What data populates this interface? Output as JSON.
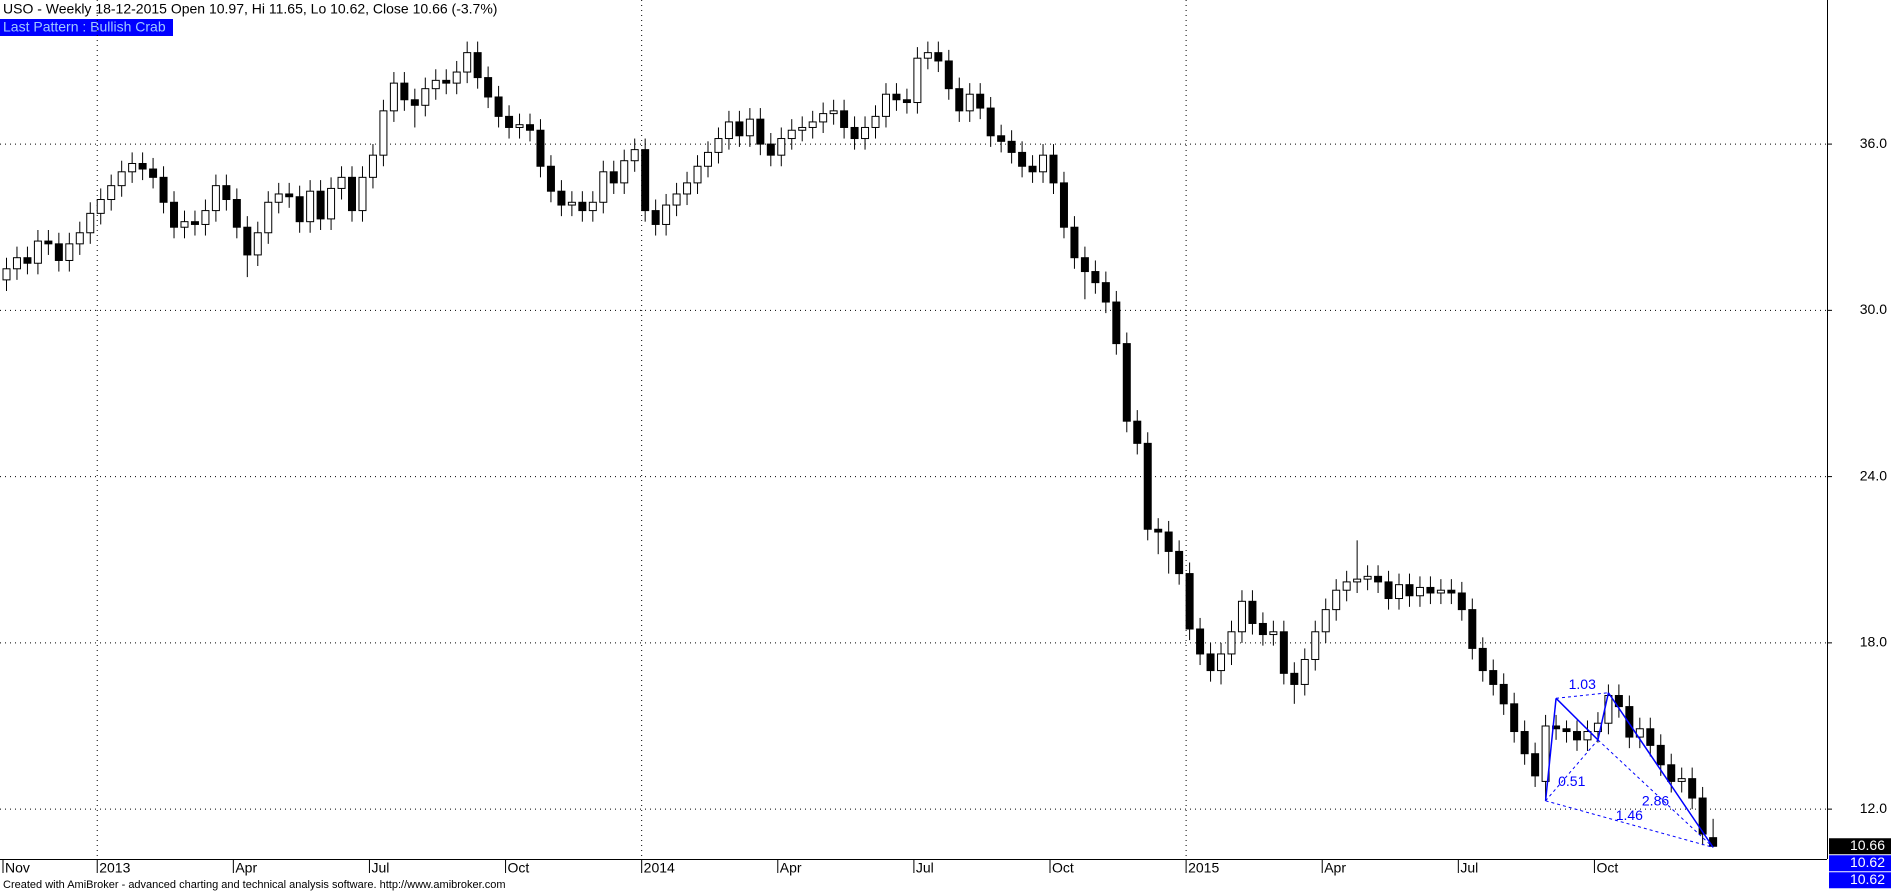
{
  "chart_data": {
    "type": "candlestick",
    "title": "USO - Weekly 18-12-2015 Open 10.97, Hi 11.65, Lo 10.62, Close 10.66 (-3.7%)",
    "pattern_label": "Last Pattern : Bullish Crab",
    "footer": "Created with AmiBroker - advanced charting and technical analysis software. http://www.amibroker.com",
    "categories": [
      "Nov",
      null,
      null,
      null,
      null,
      null,
      null,
      null,
      null,
      "2013",
      null,
      null,
      null,
      null,
      null,
      null,
      null,
      null,
      null,
      null,
      null,
      null,
      "Apr",
      null,
      null,
      null,
      null,
      null,
      null,
      null,
      null,
      null,
      null,
      null,
      null,
      "Jul",
      null,
      null,
      null,
      null,
      null,
      null,
      null,
      null,
      null,
      null,
      null,
      null,
      "Oct",
      null,
      null,
      null,
      null,
      null,
      null,
      null,
      null,
      null,
      null,
      null,
      null,
      "2014",
      null,
      null,
      null,
      null,
      null,
      null,
      null,
      null,
      null,
      null,
      null,
      null,
      "Apr",
      null,
      null,
      null,
      null,
      null,
      null,
      null,
      null,
      null,
      null,
      null,
      null,
      "Jul",
      null,
      null,
      null,
      null,
      null,
      null,
      null,
      null,
      null,
      null,
      null,
      null,
      "Oct",
      null,
      null,
      null,
      null,
      null,
      null,
      null,
      null,
      null,
      null,
      null,
      null,
      "2015",
      null,
      null,
      null,
      null,
      null,
      null,
      null,
      null,
      null,
      null,
      null,
      null,
      "Apr",
      null,
      null,
      null,
      null,
      null,
      null,
      null,
      null,
      null,
      null,
      null,
      null,
      "Jul",
      null,
      null,
      null,
      null,
      null,
      null,
      null,
      null,
      null,
      null,
      null,
      null,
      "Oct",
      null,
      null,
      null,
      null,
      null,
      null,
      null,
      null,
      null,
      null,
      null
    ],
    "open": [
      31.1,
      31.5,
      31.9,
      31.7,
      32.5,
      32.4,
      31.8,
      32.4,
      32.8,
      33.5,
      34.0,
      34.5,
      35.0,
      35.3,
      35.1,
      34.8,
      33.9,
      33.0,
      33.2,
      33.1,
      33.6,
      34.5,
      34.0,
      33.0,
      32.0,
      32.8,
      33.9,
      34.2,
      34.1,
      33.2,
      34.3,
      33.3,
      34.4,
      34.8,
      33.6,
      34.8,
      35.6,
      37.2,
      38.2,
      37.6,
      37.4,
      38.0,
      38.3,
      38.2,
      38.6,
      39.3,
      38.4,
      37.7,
      37.0,
      36.6,
      36.7,
      36.5,
      35.2,
      34.3,
      33.8,
      33.9,
      33.6,
      33.9,
      35.0,
      34.6,
      35.4,
      35.8,
      33.6,
      33.1,
      33.8,
      34.2,
      34.6,
      35.2,
      35.7,
      36.2,
      36.8,
      36.3,
      36.9,
      36.0,
      35.6,
      36.2,
      36.5,
      36.6,
      36.8,
      37.1,
      37.2,
      36.6,
      36.2,
      36.6,
      37.0,
      37.8,
      37.6,
      37.5,
      39.1,
      39.3,
      39.0,
      38.0,
      37.2,
      37.8,
      37.3,
      36.3,
      36.1,
      35.7,
      35.2,
      35.0,
      35.6,
      34.6,
      33.0,
      31.9,
      31.4,
      31.0,
      30.3,
      28.8,
      26.0,
      25.2,
      22.1,
      22.0,
      21.3,
      20.5,
      18.5,
      17.6,
      17.0,
      17.6,
      18.4,
      19.5,
      18.7,
      18.3,
      18.4,
      16.9,
      16.5,
      17.4,
      18.4,
      19.2,
      19.9,
      20.2,
      20.3,
      20.4,
      20.2,
      19.6,
      20.1,
      19.7,
      20.0,
      19.8,
      19.9,
      19.8,
      19.2,
      17.8,
      17.0,
      16.5,
      15.8,
      14.8,
      14.0,
      13.0,
      15.0,
      14.9,
      14.8,
      14.5,
      14.8,
      15.1,
      16.1,
      15.7,
      14.6,
      14.9,
      14.3,
      13.6,
      13.0,
      13.1,
      12.4,
      10.97
    ],
    "high": [
      31.9,
      32.3,
      32.3,
      32.9,
      32.9,
      32.8,
      32.8,
      33.2,
      33.9,
      34.4,
      34.9,
      35.4,
      35.7,
      35.7,
      35.5,
      35.2,
      34.3,
      33.6,
      33.6,
      34.0,
      34.9,
      34.9,
      34.4,
      33.4,
      33.2,
      34.3,
      34.6,
      34.6,
      34.5,
      34.7,
      34.7,
      34.8,
      35.2,
      35.2,
      35.2,
      36.0,
      37.6,
      38.6,
      38.6,
      38.0,
      38.4,
      38.7,
      38.7,
      39.0,
      39.7,
      39.7,
      38.8,
      38.1,
      37.4,
      37.1,
      37.1,
      36.9,
      35.6,
      34.7,
      34.3,
      34.3,
      34.3,
      35.4,
      35.4,
      35.8,
      36.2,
      36.2,
      34.0,
      34.2,
      34.6,
      35.0,
      35.6,
      36.1,
      36.6,
      37.2,
      37.2,
      37.3,
      37.3,
      36.4,
      36.6,
      36.9,
      37.0,
      37.2,
      37.5,
      37.6,
      37.6,
      37.0,
      37.0,
      37.4,
      38.2,
      38.2,
      38.0,
      39.5,
      39.7,
      39.7,
      39.4,
      38.4,
      38.2,
      38.2,
      37.7,
      36.7,
      36.5,
      36.1,
      35.6,
      36.0,
      36.0,
      35.0,
      33.4,
      32.3,
      31.8,
      31.4,
      30.7,
      29.2,
      26.4,
      25.6,
      22.5,
      22.4,
      21.7,
      20.9,
      18.9,
      18.0,
      18.0,
      18.8,
      19.9,
      19.9,
      19.1,
      18.8,
      18.8,
      17.3,
      17.8,
      18.8,
      19.6,
      20.3,
      20.6,
      21.7,
      20.8,
      20.8,
      20.6,
      20.5,
      20.5,
      20.4,
      20.4,
      20.3,
      20.3,
      20.2,
      19.6,
      18.2,
      17.4,
      16.9,
      16.2,
      15.2,
      14.4,
      15.4,
      15.4,
      15.2,
      15.2,
      15.2,
      15.5,
      16.5,
      16.5,
      16.1,
      15.3,
      15.3,
      14.7,
      14.0,
      13.5,
      13.5,
      12.8,
      11.65
    ],
    "low": [
      30.7,
      31.1,
      31.3,
      31.3,
      32.0,
      31.4,
      31.4,
      32.0,
      32.4,
      33.1,
      33.6,
      34.1,
      34.6,
      34.7,
      34.4,
      33.5,
      32.6,
      32.6,
      32.7,
      32.7,
      33.2,
      33.6,
      32.6,
      31.2,
      31.6,
      32.4,
      33.5,
      33.7,
      32.8,
      32.8,
      32.9,
      32.9,
      34.0,
      33.2,
      33.2,
      34.4,
      35.2,
      36.8,
      37.2,
      36.6,
      37.0,
      37.6,
      37.8,
      37.8,
      38.2,
      38.0,
      37.3,
      36.6,
      36.2,
      36.2,
      36.1,
      34.8,
      33.9,
      33.4,
      33.4,
      33.2,
      33.2,
      33.5,
      34.2,
      34.2,
      35.0,
      33.2,
      32.7,
      32.7,
      33.4,
      33.8,
      34.2,
      34.8,
      35.3,
      35.8,
      35.9,
      35.9,
      35.6,
      35.2,
      35.2,
      35.8,
      36.1,
      36.2,
      36.4,
      36.7,
      36.2,
      35.8,
      35.8,
      36.2,
      36.6,
      37.2,
      37.1,
      37.1,
      38.7,
      38.6,
      37.6,
      36.8,
      36.8,
      36.9,
      35.9,
      35.7,
      35.3,
      34.8,
      34.6,
      34.6,
      34.2,
      32.6,
      31.5,
      30.4,
      30.6,
      29.9,
      28.4,
      25.6,
      24.8,
      21.7,
      21.2,
      20.5,
      20.1,
      18.1,
      17.2,
      16.6,
      16.5,
      17.2,
      18.0,
      18.3,
      17.9,
      17.9,
      16.5,
      15.8,
      16.1,
      17.0,
      18.0,
      18.8,
      19.5,
      19.8,
      19.9,
      19.8,
      19.2,
      19.2,
      19.3,
      19.3,
      19.4,
      19.4,
      19.4,
      18.8,
      17.4,
      16.6,
      16.1,
      15.4,
      14.4,
      13.6,
      12.8,
      12.3,
      14.5,
      14.4,
      14.1,
      14.1,
      14.4,
      14.7,
      15.3,
      14.2,
      14.2,
      13.9,
      13.2,
      12.6,
      12.6,
      12.0,
      10.7,
      10.62
    ],
    "close": [
      31.5,
      31.9,
      31.7,
      32.5,
      32.4,
      31.8,
      32.4,
      32.8,
      33.5,
      34.0,
      34.5,
      35.0,
      35.3,
      35.1,
      34.8,
      33.9,
      33.0,
      33.2,
      33.1,
      33.6,
      34.5,
      34.0,
      33.0,
      32.0,
      32.8,
      33.9,
      34.2,
      34.1,
      33.2,
      34.3,
      33.3,
      34.4,
      34.8,
      33.6,
      34.8,
      35.6,
      37.2,
      38.2,
      37.6,
      37.4,
      38.0,
      38.3,
      38.2,
      38.6,
      39.3,
      38.4,
      37.7,
      37.0,
      36.6,
      36.7,
      36.5,
      35.2,
      34.3,
      33.8,
      33.9,
      33.6,
      33.9,
      35.0,
      34.6,
      35.4,
      35.8,
      33.6,
      33.1,
      33.8,
      34.2,
      34.6,
      35.2,
      35.7,
      36.2,
      36.8,
      36.3,
      36.9,
      36.0,
      35.6,
      36.2,
      36.5,
      36.6,
      36.8,
      37.1,
      37.2,
      36.6,
      36.2,
      36.6,
      37.0,
      37.8,
      37.6,
      37.5,
      39.1,
      39.3,
      39.0,
      38.0,
      37.2,
      37.8,
      37.3,
      36.3,
      36.1,
      35.7,
      35.2,
      35.0,
      35.6,
      34.6,
      33.0,
      31.9,
      31.4,
      31.0,
      30.3,
      28.8,
      26.0,
      25.2,
      22.1,
      22.0,
      21.3,
      20.5,
      18.5,
      17.6,
      17.0,
      17.6,
      18.4,
      19.5,
      18.7,
      18.3,
      18.4,
      16.9,
      16.5,
      17.4,
      18.4,
      19.2,
      19.9,
      20.2,
      20.3,
      20.4,
      20.2,
      19.6,
      20.1,
      19.7,
      20.0,
      19.8,
      19.9,
      19.8,
      19.2,
      17.8,
      17.0,
      16.5,
      15.8,
      14.8,
      14.0,
      13.2,
      15.0,
      14.9,
      14.8,
      14.5,
      14.8,
      15.1,
      16.1,
      15.7,
      14.6,
      14.9,
      14.3,
      13.6,
      13.0,
      13.1,
      12.4,
      11.1,
      10.66
    ],
    "up_color": "#ffffff",
    "down_color": "#000000",
    "ylim": [
      10.2,
      41.2
    ],
    "yticks": [
      {
        "value": 12,
        "label": "12.0"
      },
      {
        "value": 18,
        "label": "18.0"
      },
      {
        "value": 24,
        "label": "24.0"
      },
      {
        "value": 30,
        "label": "30.0"
      },
      {
        "value": 36,
        "label": "36.0"
      }
    ],
    "grid": true,
    "pattern": {
      "color": "#0000ff",
      "index": [
        147,
        148,
        152,
        153,
        163
      ],
      "values": [
        12.3,
        16.0,
        14.5,
        16.2,
        10.62
      ],
      "ratios": [
        1.03,
        0.51,
        2.86,
        1.46
      ]
    },
    "last_labels": {
      "values": [
        10.66,
        10.62,
        10.62
      ],
      "colors": [
        "#000000",
        "#0000ff",
        "#0000ff"
      ]
    }
  }
}
